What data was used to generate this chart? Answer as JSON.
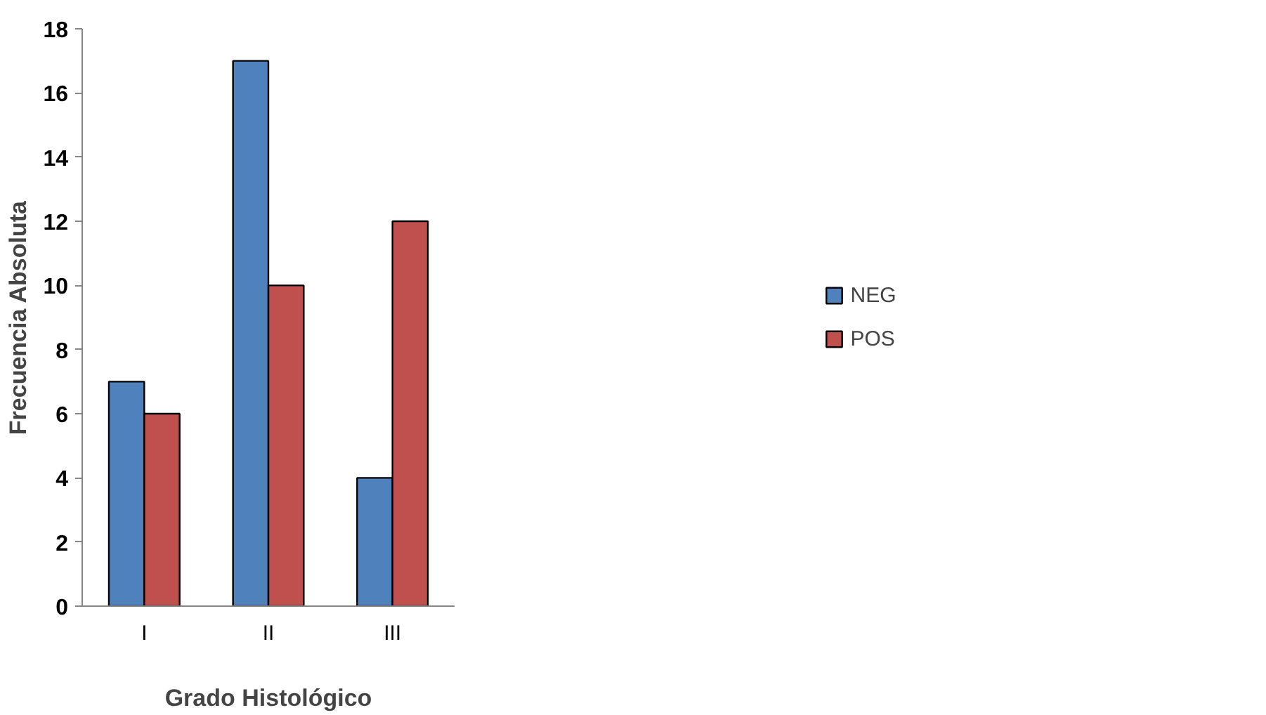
{
  "chart_data": {
    "type": "bar",
    "xlabel": "Grado Histológico",
    "ylabel": "Frecuencia Absoluta",
    "categories": [
      "I",
      "II",
      "III"
    ],
    "series": [
      {
        "name": "NEG",
        "color": "#4f81bd",
        "values": [
          7,
          17,
          4
        ]
      },
      {
        "name": "POS",
        "color": "#c0504d",
        "values": [
          6,
          10,
          12
        ]
      }
    ],
    "ylim": [
      0,
      18
    ],
    "yticks": [
      0,
      2,
      4,
      6,
      8,
      10,
      12,
      14,
      16,
      18
    ],
    "grid": false,
    "legend": "right"
  }
}
